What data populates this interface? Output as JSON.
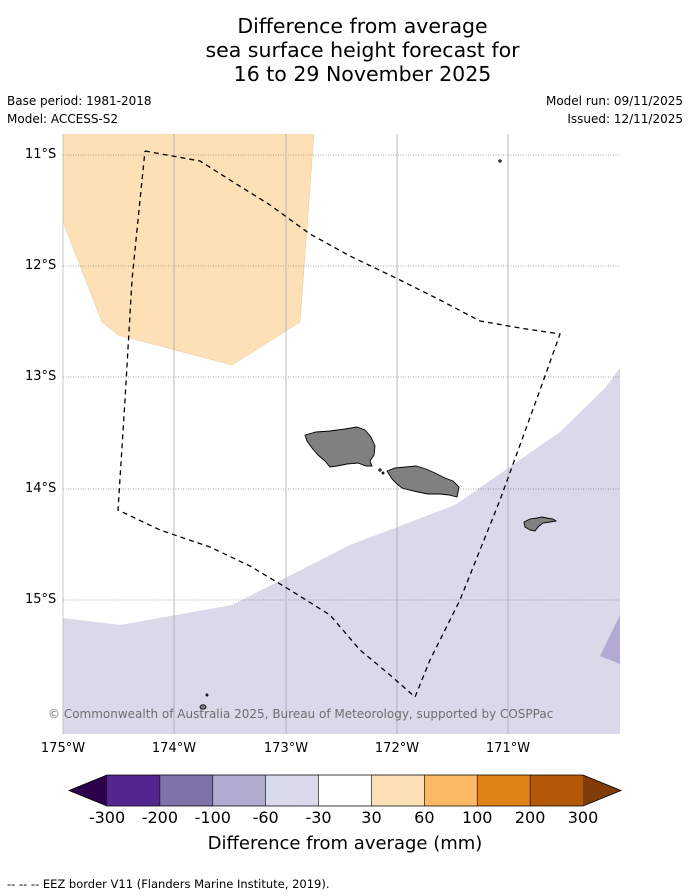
{
  "title": {
    "line1": "Difference from average",
    "line2": "sea surface height forecast for",
    "line3": "16 to 29 November 2025"
  },
  "meta": {
    "base_period": "Base period: 1981-2018",
    "model": "Model: ACCESS-S2",
    "model_run": "Model run: 09/11/2025",
    "issued": "Issued: 12/11/2025"
  },
  "map": {
    "lat_labels": [
      "11°S",
      "12°S",
      "13°S",
      "14°S",
      "15°S"
    ],
    "lon_labels": [
      "175°W",
      "174°W",
      "173°W",
      "172°W",
      "171°W"
    ],
    "copyright": "© Commonwealth of Australia 2025, Bureau of Meteorology, supported by COSPPac",
    "land_color": "#808080",
    "positive_anomaly_color": "#fde0b6",
    "negative_anomaly_color": "#d9d9ea",
    "strong_negative_color": "#b2aad2"
  },
  "colorbar": {
    "label": "Difference from average (mm)",
    "ticks": [
      "-300",
      "-200",
      "-100",
      "-60",
      "-30",
      "30",
      "60",
      "100",
      "200",
      "300"
    ],
    "colors": [
      "#2d004b",
      "#54278f",
      "#8073ac",
      "#b2abd2",
      "#d8daeb",
      "#ffffff",
      "#fee0b6",
      "#fdb863",
      "#e08214",
      "#b35806",
      "#7f3b08"
    ]
  },
  "footnote": "--  --  -- EEZ border V11 (Flanders Marine Institute, 2019)."
}
